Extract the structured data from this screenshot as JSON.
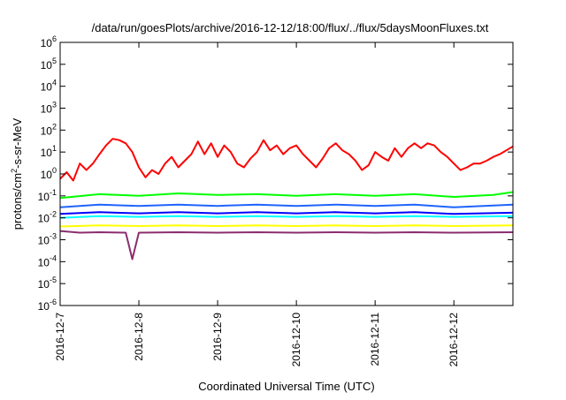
{
  "chart_data": {
    "type": "line",
    "title": "/data/run/goesPlots/archive/2016-12-12/18:00/flux/../flux/5daysMoonFluxes.txt",
    "xlabel": "Coordinated Universal Time (UTC)",
    "ylabel": {
      "prefix": "protons/cm",
      "sup": "2",
      "suffix": "-s-sr-MeV"
    },
    "yscale": "log",
    "ylim": [
      1e-06,
      1000000.0
    ],
    "yticks": [
      {
        "value": 1e-06,
        "base": "10",
        "exp": "-6"
      },
      {
        "value": 1e-05,
        "base": "10",
        "exp": "-5"
      },
      {
        "value": 0.0001,
        "base": "10",
        "exp": "-4"
      },
      {
        "value": 0.001,
        "base": "10",
        "exp": "-3"
      },
      {
        "value": 0.01,
        "base": "10",
        "exp": "-2"
      },
      {
        "value": 0.1,
        "base": "10",
        "exp": "-1"
      },
      {
        "value": 1,
        "base": "10",
        "exp": "0"
      },
      {
        "value": 10.0,
        "base": "10",
        "exp": "1"
      },
      {
        "value": 100.0,
        "base": "10",
        "exp": "2"
      },
      {
        "value": 1000.0,
        "base": "10",
        "exp": "3"
      },
      {
        "value": 10000.0,
        "base": "10",
        "exp": "4"
      },
      {
        "value": 100000.0,
        "base": "10",
        "exp": "5"
      },
      {
        "value": 1000000.0,
        "base": "10",
        "exp": "6"
      }
    ],
    "xlim": [
      "2016-12-07T00:00",
      "2016-12-12T18:00"
    ],
    "xticks": [
      "2016-12-7",
      "2016-12-8",
      "2016-12-9",
      "2016-12-10",
      "2016-12-11",
      "2016-12-12"
    ],
    "grid": false,
    "legend": "none",
    "series": [
      {
        "color": "#ff0000",
        "points": [
          [
            "2016-12-07T00:00",
            0.6
          ],
          [
            "2016-12-07T02:00",
            1.2
          ],
          [
            "2016-12-07T04:00",
            0.5
          ],
          [
            "2016-12-07T06:00",
            3
          ],
          [
            "2016-12-07T08:00",
            1.5
          ],
          [
            "2016-12-07T10:00",
            3
          ],
          [
            "2016-12-07T12:00",
            8
          ],
          [
            "2016-12-07T14:00",
            20
          ],
          [
            "2016-12-07T16:00",
            40
          ],
          [
            "2016-12-07T18:00",
            35
          ],
          [
            "2016-12-07T20:00",
            25
          ],
          [
            "2016-12-07T22:00",
            10
          ],
          [
            "2016-12-08T00:00",
            2
          ],
          [
            "2016-12-08T02:00",
            0.7
          ],
          [
            "2016-12-08T04:00",
            1.5
          ],
          [
            "2016-12-08T06:00",
            1
          ],
          [
            "2016-12-08T08:00",
            3
          ],
          [
            "2016-12-08T10:00",
            6
          ],
          [
            "2016-12-08T12:00",
            2
          ],
          [
            "2016-12-08T14:00",
            4
          ],
          [
            "2016-12-08T16:00",
            8
          ],
          [
            "2016-12-08T18:00",
            30
          ],
          [
            "2016-12-08T20:00",
            8
          ],
          [
            "2016-12-08T22:00",
            25
          ],
          [
            "2016-12-09T00:00",
            6
          ],
          [
            "2016-12-09T02:00",
            20
          ],
          [
            "2016-12-09T04:00",
            10
          ],
          [
            "2016-12-09T06:00",
            3
          ],
          [
            "2016-12-09T08:00",
            2
          ],
          [
            "2016-12-09T10:00",
            5
          ],
          [
            "2016-12-09T12:00",
            10
          ],
          [
            "2016-12-09T14:00",
            35
          ],
          [
            "2016-12-09T16:00",
            12
          ],
          [
            "2016-12-09T18:00",
            20
          ],
          [
            "2016-12-09T20:00",
            8
          ],
          [
            "2016-12-09T22:00",
            15
          ],
          [
            "2016-12-10T00:00",
            20
          ],
          [
            "2016-12-10T02:00",
            8
          ],
          [
            "2016-12-10T04:00",
            4
          ],
          [
            "2016-12-10T06:00",
            2
          ],
          [
            "2016-12-10T08:00",
            5
          ],
          [
            "2016-12-10T10:00",
            15
          ],
          [
            "2016-12-10T12:00",
            25
          ],
          [
            "2016-12-10T14:00",
            12
          ],
          [
            "2016-12-10T16:00",
            8
          ],
          [
            "2016-12-10T18:00",
            4
          ],
          [
            "2016-12-10T20:00",
            1.5
          ],
          [
            "2016-12-10T22:00",
            2.5
          ],
          [
            "2016-12-11T00:00",
            10
          ],
          [
            "2016-12-11T02:00",
            6
          ],
          [
            "2016-12-11T04:00",
            4
          ],
          [
            "2016-12-11T06:00",
            15
          ],
          [
            "2016-12-11T08:00",
            6
          ],
          [
            "2016-12-11T10:00",
            15
          ],
          [
            "2016-12-11T12:00",
            25
          ],
          [
            "2016-12-11T14:00",
            15
          ],
          [
            "2016-12-11T16:00",
            25
          ],
          [
            "2016-12-11T18:00",
            20
          ],
          [
            "2016-12-11T20:00",
            10
          ],
          [
            "2016-12-11T22:00",
            6
          ],
          [
            "2016-12-12T00:00",
            3
          ],
          [
            "2016-12-12T02:00",
            1.5
          ],
          [
            "2016-12-12T04:00",
            2
          ],
          [
            "2016-12-12T06:00",
            3
          ],
          [
            "2016-12-12T08:00",
            3
          ],
          [
            "2016-12-12T10:00",
            4
          ],
          [
            "2016-12-12T12:00",
            6
          ],
          [
            "2016-12-12T14:00",
            8
          ],
          [
            "2016-12-12T16:00",
            12
          ],
          [
            "2016-12-12T18:00",
            18
          ]
        ]
      },
      {
        "color": "#00ff00",
        "points": [
          [
            "2016-12-07T00:00",
            0.08
          ],
          [
            "2016-12-07T12:00",
            0.12
          ],
          [
            "2016-12-08T00:00",
            0.1
          ],
          [
            "2016-12-08T12:00",
            0.13
          ],
          [
            "2016-12-09T00:00",
            0.11
          ],
          [
            "2016-12-09T12:00",
            0.12
          ],
          [
            "2016-12-10T00:00",
            0.1
          ],
          [
            "2016-12-10T12:00",
            0.12
          ],
          [
            "2016-12-11T00:00",
            0.1
          ],
          [
            "2016-12-11T12:00",
            0.12
          ],
          [
            "2016-12-12T00:00",
            0.09
          ],
          [
            "2016-12-12T12:00",
            0.11
          ],
          [
            "2016-12-12T18:00",
            0.15
          ]
        ]
      },
      {
        "color": "#00ffff",
        "points": [
          [
            "2016-12-07T00:00",
            0.01
          ],
          [
            "2016-12-07T12:00",
            0.012
          ],
          [
            "2016-12-08T00:00",
            0.011
          ],
          [
            "2016-12-08T12:00",
            0.012
          ],
          [
            "2016-12-09T00:00",
            0.011
          ],
          [
            "2016-12-09T12:00",
            0.012
          ],
          [
            "2016-12-10T00:00",
            0.011
          ],
          [
            "2016-12-10T12:00",
            0.012
          ],
          [
            "2016-12-11T00:00",
            0.011
          ],
          [
            "2016-12-11T12:00",
            0.012
          ],
          [
            "2016-12-12T00:00",
            0.011
          ],
          [
            "2016-12-12T18:00",
            0.012
          ]
        ]
      },
      {
        "color": "#1e64ff",
        "points": [
          [
            "2016-12-07T00:00",
            0.03
          ],
          [
            "2016-12-07T12:00",
            0.04
          ],
          [
            "2016-12-08T00:00",
            0.035
          ],
          [
            "2016-12-08T12:00",
            0.04
          ],
          [
            "2016-12-09T00:00",
            0.035
          ],
          [
            "2016-12-09T12:00",
            0.04
          ],
          [
            "2016-12-10T00:00",
            0.035
          ],
          [
            "2016-12-10T12:00",
            0.04
          ],
          [
            "2016-12-11T00:00",
            0.035
          ],
          [
            "2016-12-11T12:00",
            0.04
          ],
          [
            "2016-12-12T00:00",
            0.03
          ],
          [
            "2016-12-12T18:00",
            0.04
          ]
        ]
      },
      {
        "color": "#0000ff",
        "points": [
          [
            "2016-12-07T00:00",
            0.015
          ],
          [
            "2016-12-07T12:00",
            0.018
          ],
          [
            "2016-12-08T00:00",
            0.016
          ],
          [
            "2016-12-08T12:00",
            0.018
          ],
          [
            "2016-12-09T00:00",
            0.016
          ],
          [
            "2016-12-09T12:00",
            0.018
          ],
          [
            "2016-12-10T00:00",
            0.016
          ],
          [
            "2016-12-10T12:00",
            0.018
          ],
          [
            "2016-12-11T00:00",
            0.016
          ],
          [
            "2016-12-11T12:00",
            0.018
          ],
          [
            "2016-12-12T00:00",
            0.015
          ],
          [
            "2016-12-12T18:00",
            0.017
          ]
        ]
      },
      {
        "color": "#ffff00",
        "points": [
          [
            "2016-12-07T00:00",
            0.004
          ],
          [
            "2016-12-07T12:00",
            0.0045
          ],
          [
            "2016-12-08T00:00",
            0.0042
          ],
          [
            "2016-12-08T12:00",
            0.0045
          ],
          [
            "2016-12-09T00:00",
            0.0042
          ],
          [
            "2016-12-09T12:00",
            0.0045
          ],
          [
            "2016-12-10T00:00",
            0.0042
          ],
          [
            "2016-12-10T12:00",
            0.0045
          ],
          [
            "2016-12-11T00:00",
            0.0042
          ],
          [
            "2016-12-11T12:00",
            0.0045
          ],
          [
            "2016-12-12T00:00",
            0.0042
          ],
          [
            "2016-12-12T18:00",
            0.0045
          ]
        ]
      },
      {
        "color": "#8b2d6e",
        "points": [
          [
            "2016-12-07T00:00",
            0.0025
          ],
          [
            "2016-12-07T06:00",
            0.0021
          ],
          [
            "2016-12-07T12:00",
            0.0022
          ],
          [
            "2016-12-07T20:00",
            0.0021
          ],
          [
            "2016-12-07T22:00",
            0.00013
          ],
          [
            "2016-12-08T00:00",
            0.0021
          ],
          [
            "2016-12-08T12:00",
            0.0022
          ],
          [
            "2016-12-09T00:00",
            0.0021
          ],
          [
            "2016-12-09T12:00",
            0.0022
          ],
          [
            "2016-12-10T00:00",
            0.0021
          ],
          [
            "2016-12-10T12:00",
            0.0022
          ],
          [
            "2016-12-11T00:00",
            0.0021
          ],
          [
            "2016-12-11T12:00",
            0.0022
          ],
          [
            "2016-12-12T00:00",
            0.0021
          ],
          [
            "2016-12-12T18:00",
            0.0022
          ]
        ]
      }
    ]
  }
}
